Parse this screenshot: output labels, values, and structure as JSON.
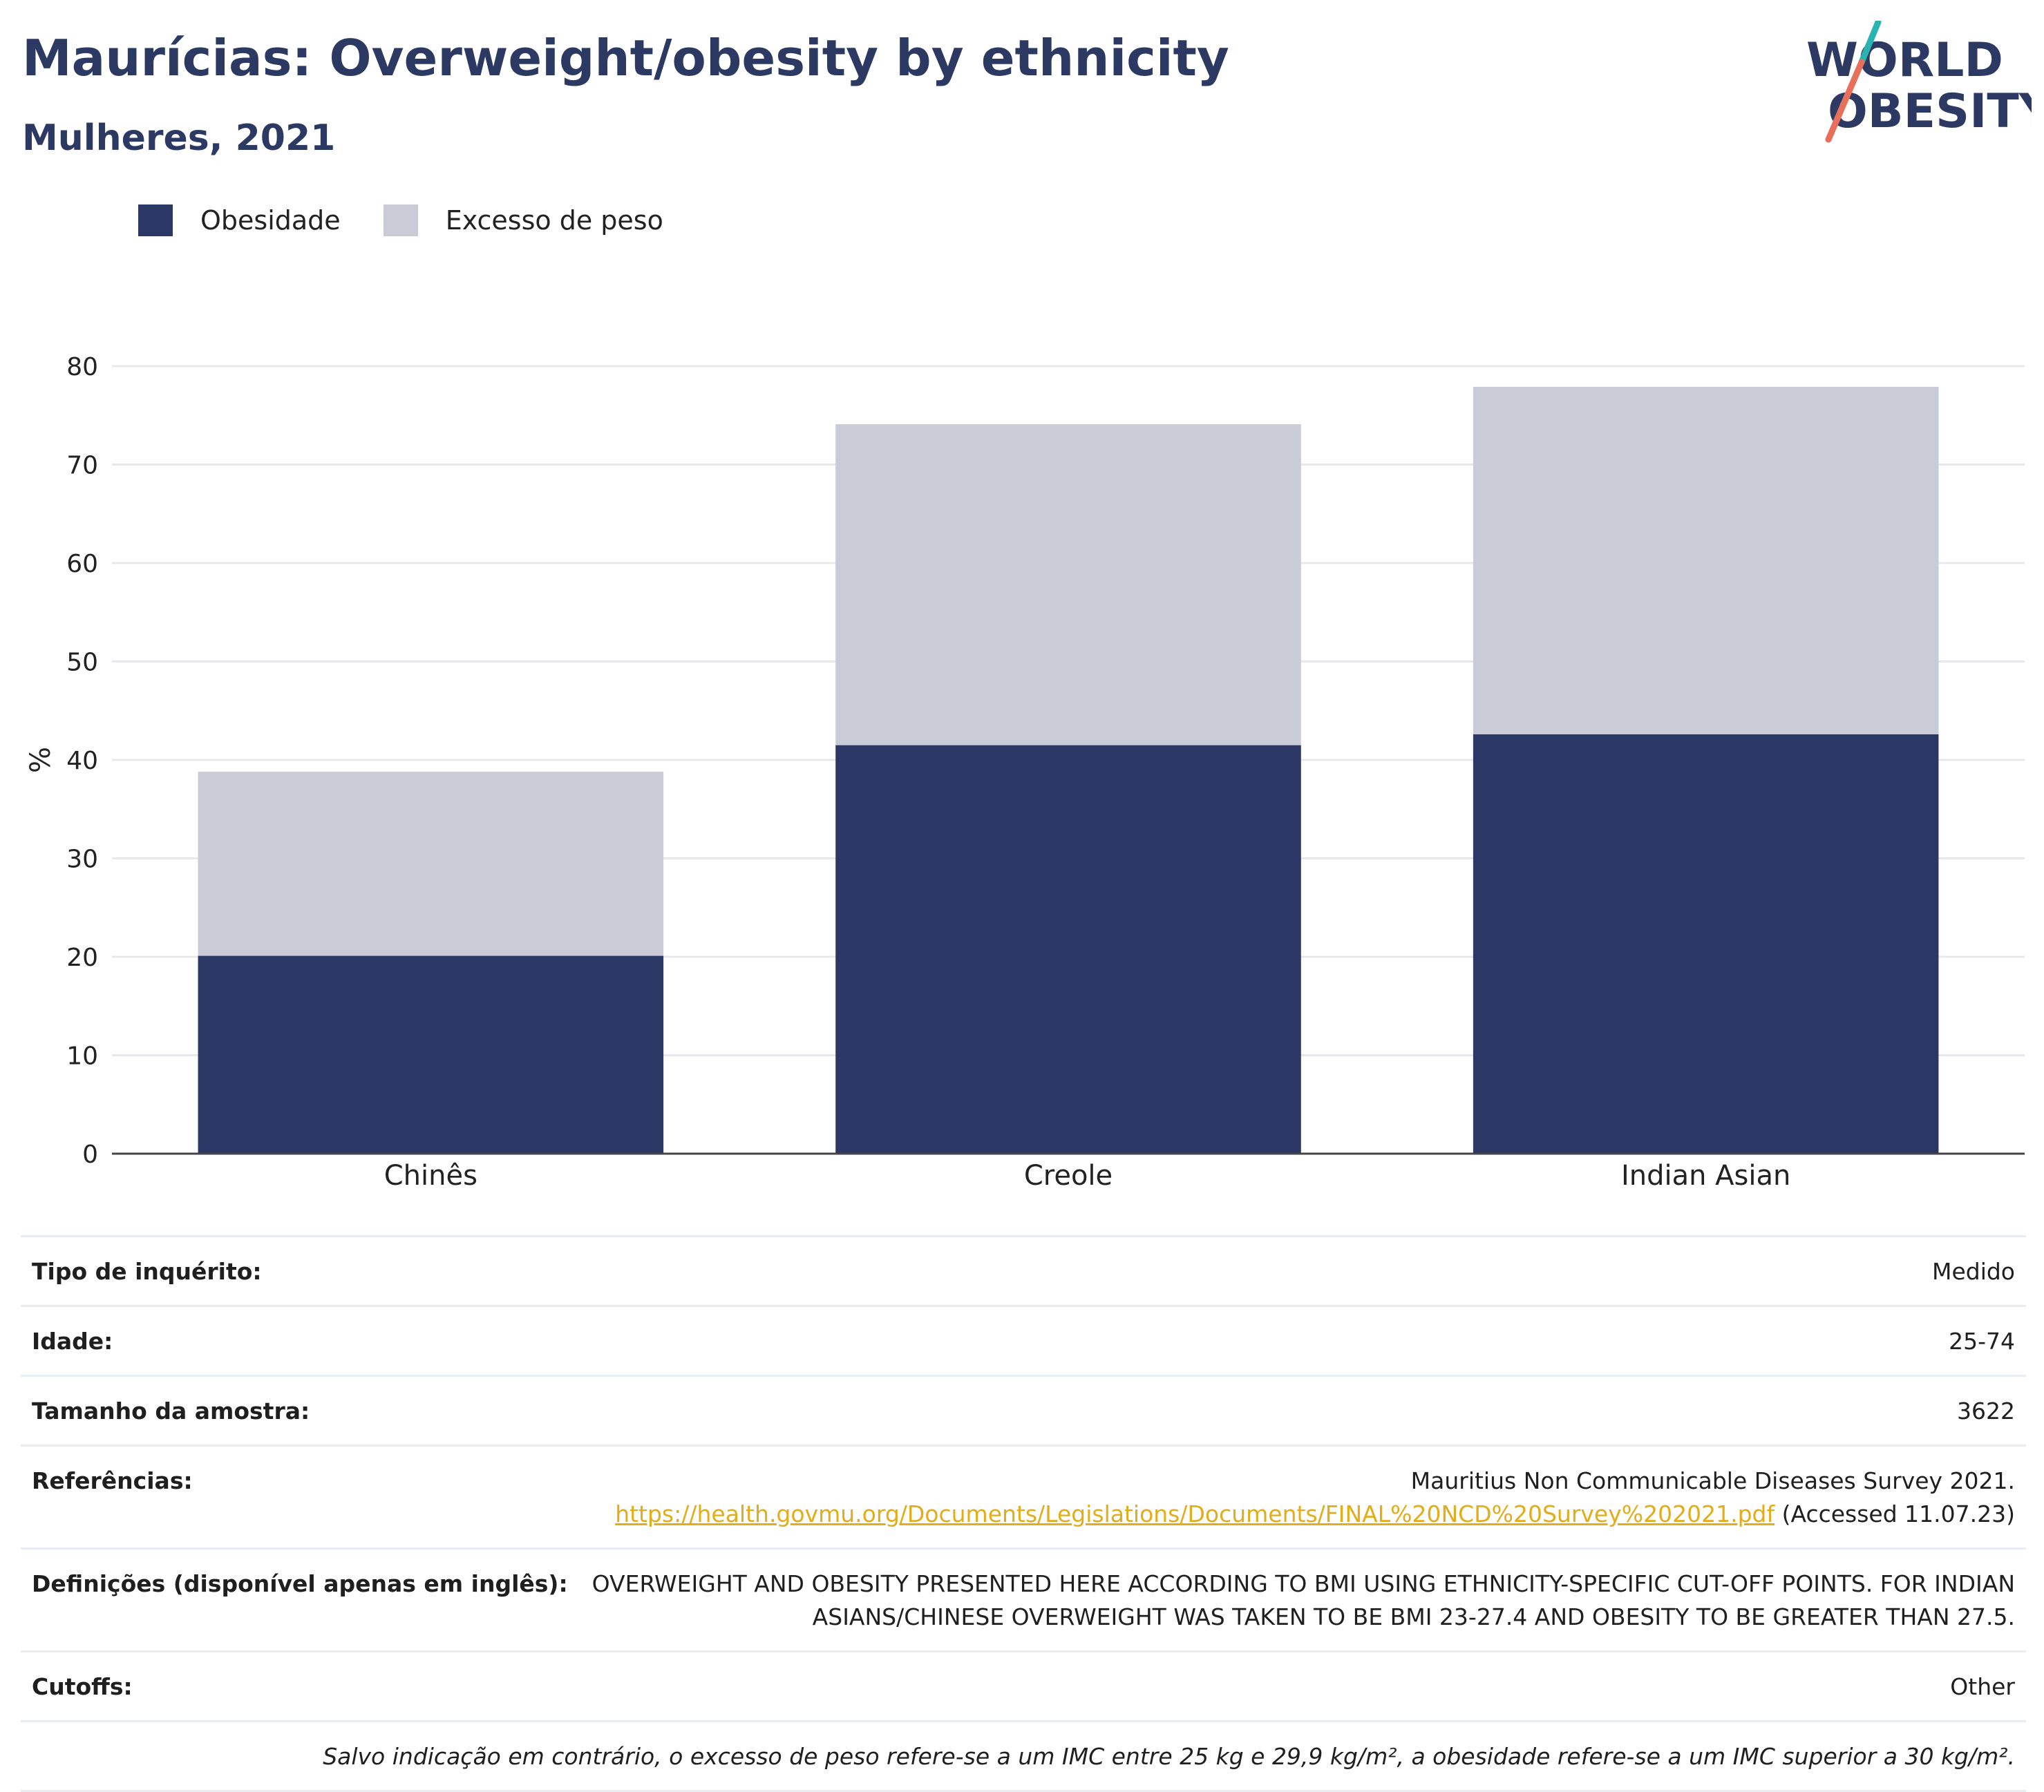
{
  "header": {
    "title": "Maurícias: Overweight/obesity by ethnicity",
    "subtitle": "Mulheres, 2021"
  },
  "logo": {
    "line1": "WORLD",
    "line2": "OBESITY",
    "color": "#2c3a63",
    "accent1": "#2bb3b1",
    "accent2": "#e8705a"
  },
  "legend": {
    "items": [
      {
        "label": "Obesidade",
        "color": "#2b3764"
      },
      {
        "label": "Excesso de peso",
        "color": "#c9cbd6"
      }
    ]
  },
  "chart_data": {
    "type": "bar",
    "stacked": true,
    "categories": [
      "Chinês",
      "Creole",
      "Indian Asian"
    ],
    "series": [
      {
        "name": "Obesidade",
        "values": [
          20.1,
          41.5,
          42.6
        ],
        "color": "#2b3764"
      },
      {
        "name": "Excesso de peso",
        "values": [
          18.7,
          32.6,
          35.3
        ],
        "color": "#c9cbd6"
      }
    ],
    "ylabel": "%",
    "ylim": [
      0,
      80
    ],
    "yticks": [
      0,
      10,
      20,
      30,
      40,
      50,
      60,
      70,
      80
    ],
    "grid": true,
    "legend_position": "top-left"
  },
  "info": {
    "survey_type": {
      "label": "Tipo de inquérito:",
      "value": "Medido"
    },
    "age": {
      "label": "Idade:",
      "value": "25-74"
    },
    "sample_size": {
      "label": "Tamanho da amostra:",
      "value": "3622"
    },
    "references": {
      "label": "Referências:",
      "line1": "Mauritius Non Communicable Diseases Survey 2021.",
      "link": "https://health.govmu.org/Documents/Legislations/Documents/FINAL%20NCD%20Survey%202021.pdf",
      "accessed": " (Accessed 11.07.23)"
    },
    "definitions": {
      "label": "Definições (disponível apenas em inglês):",
      "line1": "OVERWEIGHT AND OBESITY PRESENTED HERE ACCORDING TO BMI USING ETHNICITY-SPECIFIC CUT-OFF POINTS. FOR INDIAN",
      "line2": "ASIANS/CHINESE OVERWEIGHT WAS TAKEN TO BE BMI 23-27.4 AND OBESITY TO BE GREATER THAN 27.5."
    },
    "cutoffs": {
      "label": "Cutoffs:",
      "value": "Other"
    },
    "footnote": "Salvo indicação em contrário, o excesso de peso refere-se a um IMC entre 25 kg e 29,9 kg/m², a obesidade refere-se a um IMC superior a 30 kg/m²."
  }
}
